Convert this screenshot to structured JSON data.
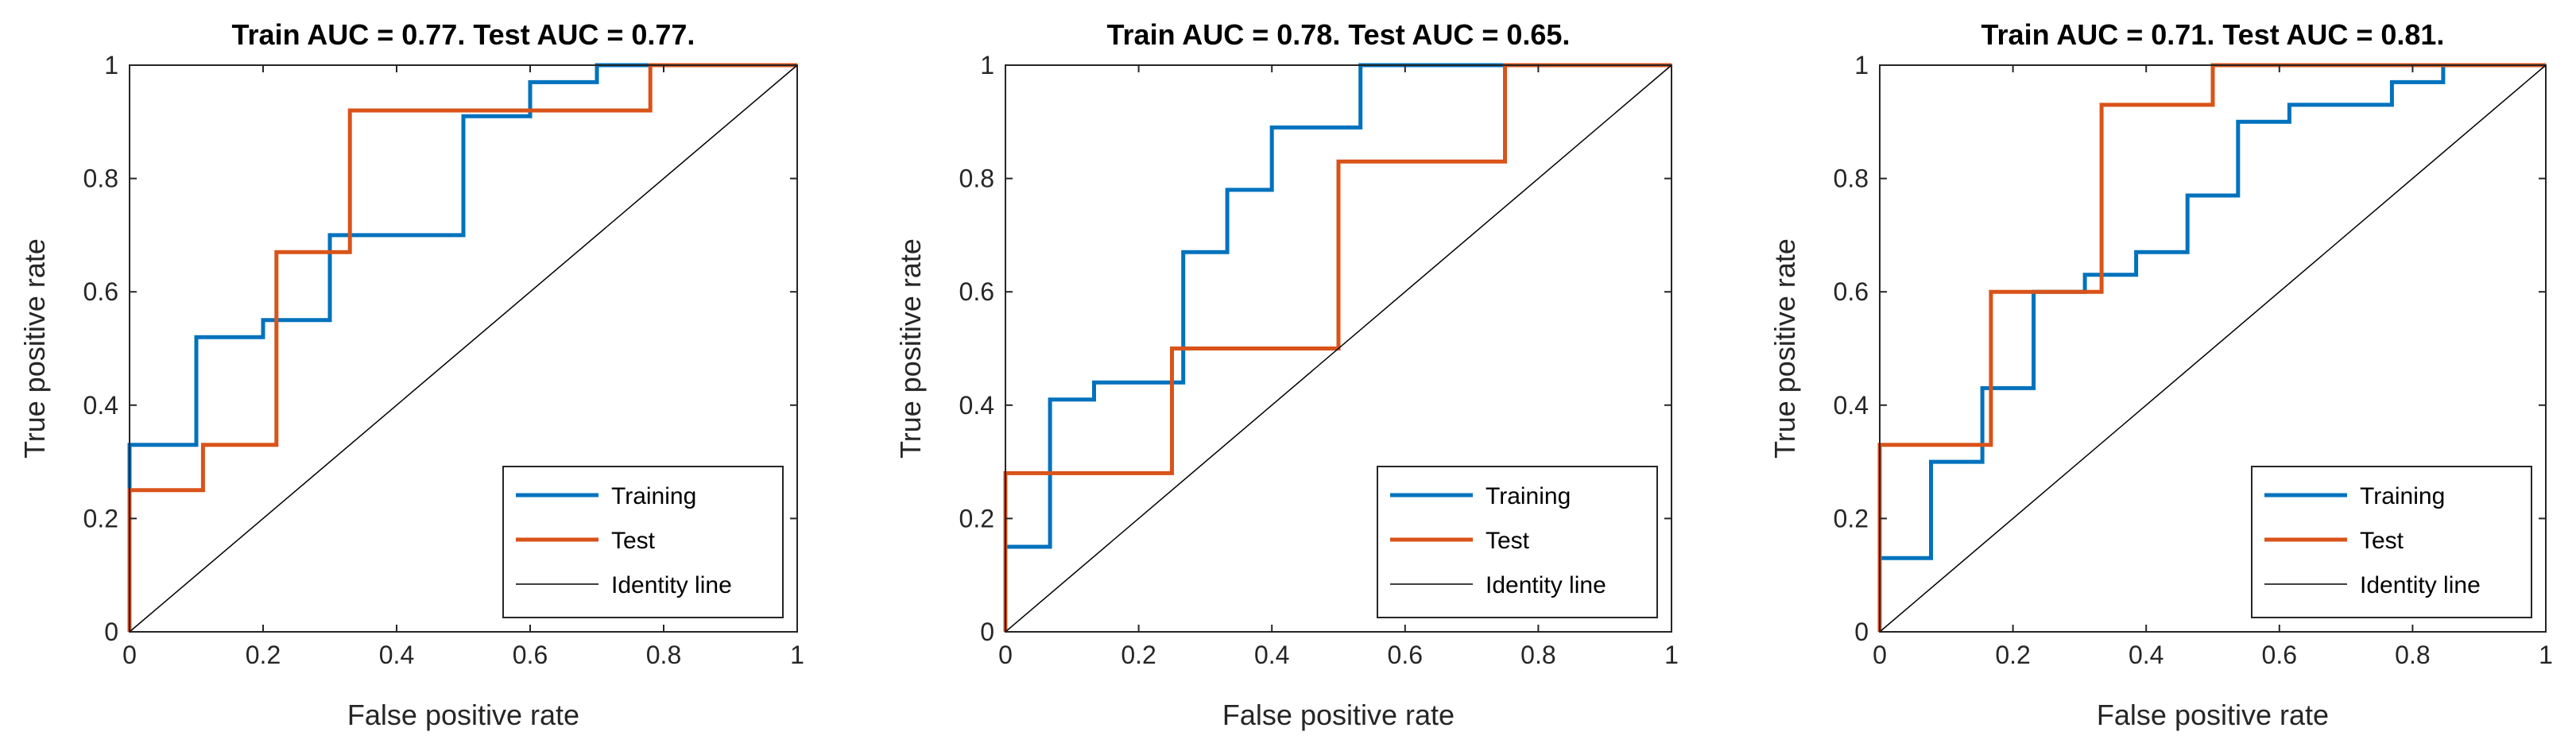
{
  "chart_data": [
    {
      "type": "line",
      "title": "Train AUC = 0.77. Test AUC = 0.77.",
      "xlabel": "False positive rate",
      "ylabel": "True positive rate",
      "xlim": [
        0,
        1
      ],
      "ylim": [
        0,
        1
      ],
      "xticks": [
        "0",
        "0.2",
        "0.4",
        "0.6",
        "0.8",
        "1"
      ],
      "yticks": [
        "0",
        "0.2",
        "0.4",
        "0.6",
        "0.8",
        "1"
      ],
      "grid": false,
      "legend": "bottom-right",
      "series": [
        {
          "name": "Training",
          "color": "#0072BD",
          "x": [
            0,
            0,
            0.1,
            0.1,
            0.2,
            0.2,
            0.3,
            0.3,
            0.5,
            0.5,
            0.6,
            0.6,
            0.7,
            0.7,
            1
          ],
          "y": [
            0.24,
            0.33,
            0.33,
            0.52,
            0.52,
            0.55,
            0.55,
            0.7,
            0.7,
            0.91,
            0.91,
            0.97,
            0.97,
            1.0,
            1.0
          ]
        },
        {
          "name": "Test",
          "color": "#D95319",
          "x": [
            0,
            0,
            0.11,
            0.11,
            0.22,
            0.22,
            0.33,
            0.33,
            0.78,
            0.78,
            1
          ],
          "y": [
            0,
            0.25,
            0.25,
            0.33,
            0.33,
            0.67,
            0.67,
            0.92,
            0.92,
            1.0,
            1.0
          ]
        },
        {
          "name": "Identity line",
          "color": "#000000",
          "x": [
            0,
            1
          ],
          "y": [
            0,
            1
          ]
        }
      ]
    },
    {
      "type": "line",
      "title": "Train AUC = 0.78. Test AUC = 0.65.",
      "xlabel": "False positive rate",
      "ylabel": "True positive rate",
      "xlim": [
        0,
        1
      ],
      "ylim": [
        0,
        1
      ],
      "xticks": [
        "0",
        "0.2",
        "0.4",
        "0.6",
        "0.8",
        "1"
      ],
      "yticks": [
        "0",
        "0.2",
        "0.4",
        "0.6",
        "0.8",
        "1"
      ],
      "grid": false,
      "legend": "bottom-right",
      "series": [
        {
          "name": "Training",
          "color": "#0072BD",
          "x": [
            0,
            0,
            0.067,
            0.067,
            0.133,
            0.133,
            0.267,
            0.267,
            0.333,
            0.333,
            0.4,
            0.4,
            0.533,
            0.533,
            1
          ],
          "y": [
            0,
            0.15,
            0.15,
            0.41,
            0.41,
            0.44,
            0.44,
            0.67,
            0.67,
            0.78,
            0.78,
            0.89,
            0.89,
            1.0,
            1.0
          ]
        },
        {
          "name": "Test",
          "color": "#D95319",
          "x": [
            0,
            0,
            0.25,
            0.25,
            0.5,
            0.5,
            0.75,
            0.75,
            1
          ],
          "y": [
            0,
            0.28,
            0.28,
            0.5,
            0.5,
            0.83,
            0.83,
            1.0,
            1.0
          ]
        },
        {
          "name": "Identity line",
          "color": "#000000",
          "x": [
            0,
            1
          ],
          "y": [
            0,
            1
          ]
        }
      ]
    },
    {
      "type": "line",
      "title": "Train AUC = 0.71. Test AUC = 0.81.",
      "xlabel": "False positive rate",
      "ylabel": "True positive rate",
      "xlim": [
        0,
        1
      ],
      "ylim": [
        0,
        1
      ],
      "xticks": [
        "0",
        "0.2",
        "0.4",
        "0.6",
        "0.8",
        "1"
      ],
      "yticks": [
        "0",
        "0.2",
        "0.4",
        "0.6",
        "0.8",
        "1"
      ],
      "grid": false,
      "legend": "bottom-right",
      "series": [
        {
          "name": "Training",
          "color": "#0072BD",
          "x": [
            0,
            0,
            0.077,
            0.077,
            0.154,
            0.154,
            0.231,
            0.231,
            0.308,
            0.308,
            0.385,
            0.385,
            0.462,
            0.462,
            0.538,
            0.538,
            0.615,
            0.615,
            0.769,
            0.769,
            0.846,
            0.846,
            1
          ],
          "y": [
            0,
            0.13,
            0.13,
            0.3,
            0.3,
            0.43,
            0.43,
            0.6,
            0.6,
            0.63,
            0.63,
            0.67,
            0.67,
            0.77,
            0.77,
            0.9,
            0.9,
            0.93,
            0.93,
            0.97,
            0.97,
            1.0,
            1.0
          ]
        },
        {
          "name": "Test",
          "color": "#D95319",
          "x": [
            0,
            0,
            0.167,
            0.167,
            0.333,
            0.333,
            0.5,
            0.5,
            1
          ],
          "y": [
            0,
            0.33,
            0.33,
            0.6,
            0.6,
            0.93,
            0.93,
            1.0,
            1.0
          ]
        },
        {
          "name": "Identity line",
          "color": "#000000",
          "x": [
            0,
            1
          ],
          "y": [
            0,
            1
          ]
        }
      ]
    }
  ]
}
